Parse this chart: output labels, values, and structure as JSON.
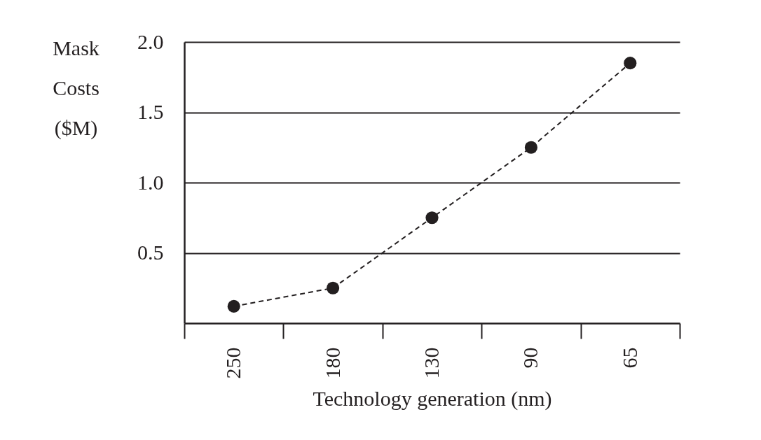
{
  "chart_data": {
    "type": "line",
    "xlabel": "Technology generation (nm)",
    "ylabel": "Mask Costs ($M)",
    "categories": [
      "250",
      "180",
      "130",
      "90",
      "65"
    ],
    "series": [
      {
        "color": "#231f20",
        "values": [
          0.12,
          0.25,
          0.75,
          1.25,
          1.85
        ]
      }
    ],
    "ylim": [
      0,
      2.0
    ],
    "yticks": [
      {
        "value": 0.5,
        "label": "0.5"
      },
      {
        "value": 1.0,
        "label": "1.0"
      },
      {
        "value": 1.5,
        "label": "1.5"
      },
      {
        "value": 2.0,
        "label": "2.0"
      }
    ],
    "grid": "y",
    "marker": "circle",
    "line_style": "dashed"
  }
}
